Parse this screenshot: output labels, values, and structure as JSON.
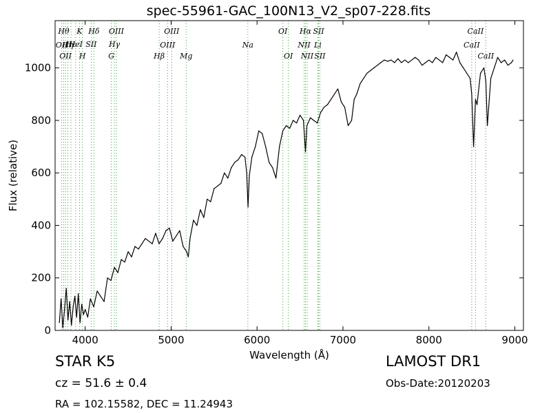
{
  "chart_data": {
    "type": "line",
    "title": "spec-55961-GAC_100N13_V2_sp07-228.fits",
    "xlabel": "Wavelength (Å)",
    "ylabel": "Flux (relative)",
    "xlim": [
      3650,
      9100
    ],
    "ylim": [
      0,
      1180
    ],
    "grid": false,
    "legend": "none",
    "x_ticks": [
      4000,
      5000,
      6000,
      7000,
      8000,
      9000
    ],
    "y_ticks": [
      0,
      200,
      400,
      600,
      800,
      1000
    ],
    "line_color": "#000000",
    "marker_color": "#2ca02c",
    "series": [
      {
        "x": [
          3700,
          3720,
          3740,
          3760,
          3780,
          3800,
          3820,
          3840,
          3860,
          3880,
          3900,
          3920,
          3940,
          3960,
          3980,
          4000,
          4030,
          4060,
          4100,
          4140,
          4180,
          4220,
          4260,
          4300,
          4340,
          4380,
          4420,
          4460,
          4500,
          4540,
          4580,
          4620,
          4660,
          4700,
          4740,
          4780,
          4820,
          4860,
          4900,
          4940,
          4980,
          5020,
          5060,
          5100,
          5140,
          5180,
          5200,
          5220,
          5260,
          5300,
          5340,
          5380,
          5420,
          5460,
          5500,
          5540,
          5580,
          5620,
          5660,
          5700,
          5740,
          5780,
          5820,
          5860,
          5880,
          5895,
          5910,
          5940,
          5980,
          6020,
          6060,
          6100,
          6140,
          6180,
          6200,
          6220,
          6240,
          6260,
          6300,
          6340,
          6380,
          6420,
          6460,
          6500,
          6540,
          6563,
          6580,
          6620,
          6660,
          6700,
          6740,
          6780,
          6820,
          6860,
          6900,
          6940,
          6980,
          7020,
          7060,
          7100,
          7130,
          7160,
          7200,
          7240,
          7280,
          7320,
          7360,
          7400,
          7440,
          7480,
          7520,
          7560,
          7600,
          7640,
          7680,
          7720,
          7760,
          7800,
          7840,
          7880,
          7920,
          7960,
          8000,
          8040,
          8080,
          8120,
          8160,
          8200,
          8240,
          8280,
          8320,
          8360,
          8400,
          8440,
          8480,
          8498,
          8520,
          8542,
          8560,
          8600,
          8640,
          8662,
          8680,
          8720,
          8760,
          8800,
          8840,
          8880,
          8920,
          8960,
          8980
        ],
        "y": [
          30,
          120,
          10,
          80,
          160,
          40,
          110,
          20,
          90,
          130,
          50,
          140,
          30,
          100,
          60,
          80,
          50,
          120,
          90,
          150,
          130,
          110,
          200,
          190,
          240,
          220,
          270,
          260,
          300,
          280,
          320,
          310,
          330,
          350,
          340,
          330,
          370,
          330,
          350,
          380,
          390,
          340,
          360,
          380,
          320,
          300,
          280,
          350,
          420,
          400,
          460,
          430,
          500,
          490,
          540,
          550,
          560,
          600,
          580,
          620,
          640,
          650,
          670,
          660,
          600,
          470,
          590,
          660,
          700,
          760,
          750,
          700,
          640,
          620,
          600,
          580,
          640,
          700,
          760,
          780,
          770,
          800,
          790,
          820,
          800,
          680,
          780,
          810,
          800,
          790,
          830,
          850,
          860,
          880,
          900,
          920,
          870,
          850,
          780,
          800,
          880,
          900,
          940,
          960,
          980,
          990,
          1000,
          1010,
          1020,
          1030,
          1025,
          1030,
          1020,
          1035,
          1020,
          1030,
          1020,
          1030,
          1040,
          1030,
          1010,
          1020,
          1030,
          1020,
          1040,
          1030,
          1020,
          1050,
          1040,
          1030,
          1060,
          1020,
          1000,
          980,
          960,
          900,
          700,
          880,
          860,
          980,
          1000,
          950,
          780,
          960,
          1000,
          1040,
          1020,
          1030,
          1010,
          1020,
          1030
        ]
      }
    ],
    "line_markers": [
      {
        "x": 3727,
        "label": "OII",
        "row": 3
      },
      {
        "x": 3750,
        "label": "Hθ",
        "row": 1
      },
      {
        "x": 3771,
        "label": "OII",
        "row": 4
      },
      {
        "x": 3798,
        "label": "Hη",
        "row": 3
      },
      {
        "x": 3835,
        "label": "Hε",
        "row": 2
      },
      {
        "x": 3889,
        "label": "HeI",
        "row": 2
      },
      {
        "x": 3934,
        "label": "K",
        "row": 1
      },
      {
        "x": 3968,
        "label": "H",
        "row": 4
      },
      {
        "x": 4070,
        "label": "SII",
        "row": 2
      },
      {
        "x": 4102,
        "label": "Hδ",
        "row": 1
      },
      {
        "x": 4304,
        "label": "G",
        "row": 4
      },
      {
        "x": 4340,
        "label": "Hγ",
        "row": 2
      },
      {
        "x": 4363,
        "label": "OIII",
        "row": 1
      },
      {
        "x": 4861,
        "label": "Hβ",
        "row": 4
      },
      {
        "x": 4959,
        "label": "OIII",
        "row": 3
      },
      {
        "x": 5007,
        "label": "OIII",
        "row": 1
      },
      {
        "x": 5175,
        "label": "Mg",
        "row": 4
      },
      {
        "x": 5893,
        "label": "Na",
        "row": 3
      },
      {
        "x": 6300,
        "label": "OI",
        "row": 1
      },
      {
        "x": 6364,
        "label": "OI",
        "row": 4
      },
      {
        "x": 6548,
        "label": "NII",
        "row": 3
      },
      {
        "x": 6563,
        "label": "Hα",
        "row": 1
      },
      {
        "x": 6583,
        "label": "NII",
        "row": 4
      },
      {
        "x": 6707,
        "label": "Li",
        "row": 3
      },
      {
        "x": 6716,
        "label": "SII",
        "row": 1
      },
      {
        "x": 6731,
        "label": "SII",
        "row": 4
      },
      {
        "x": 8498,
        "label": "CaII",
        "row": 3
      },
      {
        "x": 8542,
        "label": "CaII",
        "row": 1
      },
      {
        "x": 8662,
        "label": "CaII",
        "row": 4
      }
    ]
  },
  "footer": {
    "object_class": "STAR   K5",
    "redshift": "cz = 51.6  ± 0.4",
    "coords": "RA = 102.15582, DEC = 11.24943",
    "survey": "LAMOST DR1",
    "obs_date": "Obs-Date:20120203"
  }
}
